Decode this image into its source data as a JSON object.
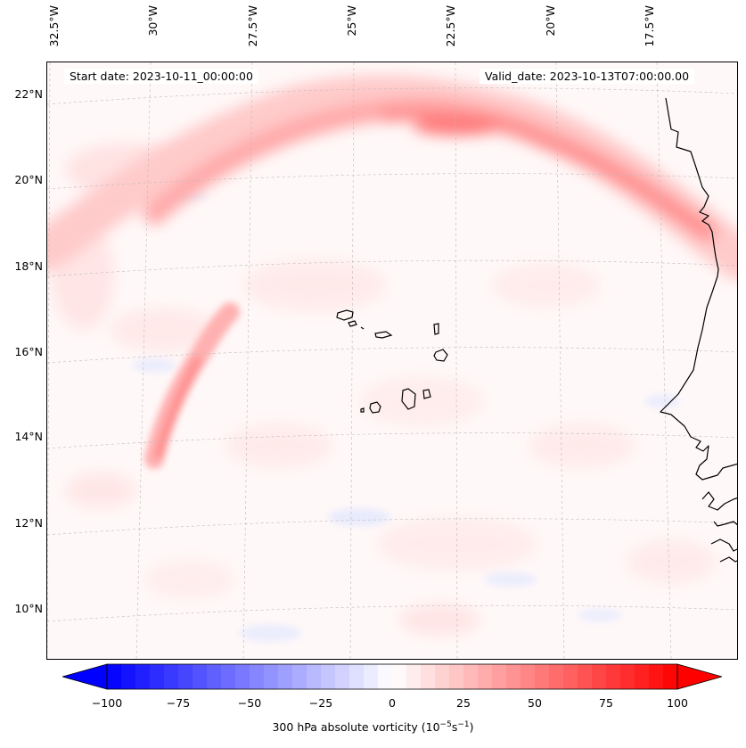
{
  "header": {
    "start_date": "Start date: 2023-10-11_00:00:00",
    "valid_date": "Valid_date: 2023-10-13T07:00:00.00"
  },
  "longitude_labels": [
    "32.5°W",
    "30°W",
    "27.5°W",
    "25°W",
    "22.5°W",
    "20°W",
    "17.5°W"
  ],
  "latitude_labels": [
    "22°N",
    "20°N",
    "18°N",
    "16°N",
    "14°N",
    "12°N",
    "10°N"
  ],
  "colorbar": {
    "ticks": [
      "−100",
      "−75",
      "−50",
      "−25",
      "0",
      "25",
      "50",
      "75",
      "100"
    ],
    "label_main": "300 hPa absolute vorticity (10",
    "label_exp1": "−5",
    "label_mid": "s",
    "label_exp2": "−1",
    "label_end": ")",
    "min": -100,
    "max": 100,
    "levels": 40,
    "low_color": "#0000ff",
    "mid_color": "#ffffff",
    "high_color": "#ff0000"
  },
  "colors": {
    "coastline": "#000000",
    "gridline": "#bbbbbb",
    "jet_strong": "#ff6b6b",
    "jet_weak": "#ffc8c8",
    "negative_weak": "#dde4ff"
  }
}
